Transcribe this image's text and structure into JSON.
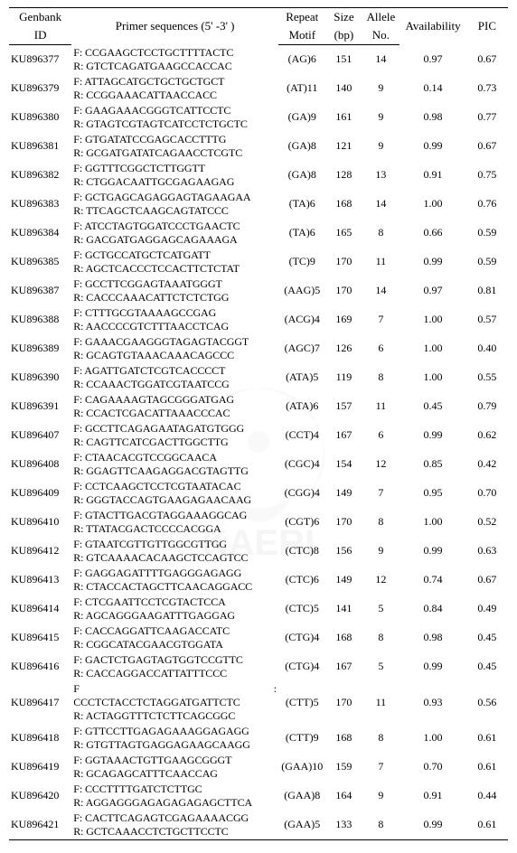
{
  "header": {
    "col_id_top": "Genbank",
    "col_id_bot": "ID",
    "col_seq": "Primer sequences (5' -3' )",
    "col_repeat_top": "Repeat",
    "col_repeat_bot": "Motif",
    "col_size_top": "Size",
    "col_size_bot": "(bp)",
    "col_allele_top": "Allele",
    "col_allele_bot": "No.",
    "col_avail": "Availability",
    "col_pic": "PIC"
  },
  "col_widths": {
    "id": 66,
    "seq": 218,
    "repeat": 50,
    "size": 38,
    "allele": 40,
    "avail": 70,
    "pic": 44
  },
  "rows": [
    {
      "id": "KU896377",
      "f": "CCGAAGCTCCTGCTTTTACTC",
      "r": "GTCTCAGATGAAGCCACCAC",
      "repeat": "(AG)6",
      "size": "151",
      "allele": "14",
      "avail": "0.97",
      "pic": "0.67"
    },
    {
      "id": "KU896379",
      "f": "ATTAGCATGCTGCTGCTGCT",
      "r": "CCGGAAACATTAACCACC",
      "repeat": "(AT)11",
      "size": "140",
      "allele": "9",
      "avail": "0.14",
      "pic": "0.73"
    },
    {
      "id": "KU896380",
      "f": "GAAGAAACGGGTCATTCCTC",
      "r": "GTAGTCGTAGTCATCCTCTGCTC",
      "repeat": "(GA)9",
      "size": "161",
      "allele": "9",
      "avail": "0.98",
      "pic": "0.77"
    },
    {
      "id": "KU896381",
      "f": "GTGATATCCGAGCACCTTTG",
      "r": "GCGATGATATCAGAACCTCGTC",
      "repeat": "(GA)8",
      "size": "121",
      "allele": "9",
      "avail": "0.99",
      "pic": "0.67"
    },
    {
      "id": "KU896382",
      "f": "GGTTTCGGCTCTTGGTT",
      "r": "CTGGACAATTGCGAGAAGAG",
      "repeat": "(GA)8",
      "size": "128",
      "allele": "13",
      "avail": "0.91",
      "pic": "0.75"
    },
    {
      "id": "KU896383",
      "f": "GCTGAGCAGAGGAGTAGAAGAA",
      "r": "TTCAGCTCAAGCAGTATCCC",
      "repeat": "(TA)6",
      "size": "168",
      "allele": "14",
      "avail": "1.00",
      "pic": "0.76"
    },
    {
      "id": "KU896384",
      "f": "ATCCTAGTGGATCCCTGAACTC",
      "r": "GACGATGAGGAGCAGAAAGA",
      "repeat": "(TA)6",
      "size": "165",
      "allele": "8",
      "avail": "0.66",
      "pic": "0.59"
    },
    {
      "id": "KU896385",
      "f": "GCTGCCATGCTCATGATT",
      "r": "AGCTCACCCTCCACTTCTCTAT",
      "repeat": "(TC)9",
      "size": "170",
      "allele": "11",
      "avail": "0.99",
      "pic": "0.59"
    },
    {
      "id": "KU896387",
      "f": "GCCTTCGGAGTAAATGGGT",
      "r": "CACCCAAACATTCTCTCTGG",
      "repeat": "(AAG)5",
      "size": "170",
      "allele": "14",
      "avail": "0.97",
      "pic": "0.81"
    },
    {
      "id": "KU896388",
      "f": "CTTTGCGTAAAAGCCGAG",
      "r": "AACCCCGTCTTTAACCTCAG",
      "repeat": "(ACG)4",
      "size": "169",
      "allele": "7",
      "avail": "1.00",
      "pic": "0.57"
    },
    {
      "id": "KU896389",
      "f": "GAAACGAAGGGTAGAGTACGGT",
      "r": "GCAGTGTAAACAAACAGCCC",
      "repeat": "(AGC)7",
      "size": "126",
      "allele": "6",
      "avail": "1.00",
      "pic": "0.40"
    },
    {
      "id": "KU896390",
      "f": "AGATTGATCTCGTCACCCCT",
      "r": "CCAAACTGGATCGTAATCCG",
      "repeat": "(ATA)5",
      "size": "119",
      "allele": "8",
      "avail": "1.00",
      "pic": "0.55"
    },
    {
      "id": "KU896391",
      "f": "CAGAAAAGTAGCGGGATGAG",
      "r": "CCACTCGACATTAAACCCAC",
      "repeat": "(ATA)6",
      "size": "157",
      "allele": "11",
      "avail": "0.45",
      "pic": "0.79"
    },
    {
      "id": "KU896407",
      "f": "GCCTTCAGAGAATAGATGTGGG",
      "r": "CAGTTCATCGACTTGGCTTG",
      "repeat": "(CCT)4",
      "size": "167",
      "allele": "6",
      "avail": "0.99",
      "pic": "0.62"
    },
    {
      "id": "KU896408",
      "f": "CTAACACGTCCGGCAACA",
      "r": "GGAGTTCAAGAGGACGTAGTTG",
      "repeat": "(CGC)4",
      "size": "154",
      "allele": "12",
      "avail": "0.85",
      "pic": "0.42"
    },
    {
      "id": "KU896409",
      "f": "CCTCAAGCTCCTCGTAATACAC",
      "r": "GGGTACCAGTGAAGAGAACAAG",
      "repeat": "(CGG)4",
      "size": "149",
      "allele": "7",
      "avail": "0.95",
      "pic": "0.70"
    },
    {
      "id": "KU896410",
      "f": "GTACTTGACGTAGGAAAGGCAG",
      "r": "TTATACGACTCCCCACGGA",
      "repeat": "(CGT)6",
      "size": "170",
      "allele": "8",
      "avail": "1.00",
      "pic": "0.52"
    },
    {
      "id": "KU896412",
      "f": "GTAATCGTTGTTGGCGTTGG",
      "r": "GTCAAAACACAAGCTCCAGTCC",
      "repeat": "(CTC)8",
      "size": "156",
      "allele": "9",
      "avail": "0.99",
      "pic": "0.63"
    },
    {
      "id": "KU896413",
      "f": "GAGGAGATTTTGAGGGAGAGG",
      "r": "CTACCACTAGCTTCAACAGGACC",
      "repeat": "(CTC)6",
      "size": "149",
      "allele": "12",
      "avail": "0.74",
      "pic": "0.67"
    },
    {
      "id": "KU896414",
      "f": "CTCGAATTCCTCGTACTCCA",
      "r": "AGCAGGGAAGATTTGAGGAG",
      "repeat": "(CTC)5",
      "size": "141",
      "allele": "5",
      "avail": "0.84",
      "pic": "0.49"
    },
    {
      "id": "KU896415",
      "f": "CACCAGGATTCAAGACCATC",
      "r": "CGGCATACGAACGTGGATA",
      "repeat": "(CTG)4",
      "size": "168",
      "allele": "8",
      "avail": "0.98",
      "pic": "0.45"
    },
    {
      "id": "KU896416",
      "f": "GACTCTGAGTAGTGGTCCGTTC",
      "r": "CACCAGGACCATTATTTCCC",
      "repeat": "(CTG)4",
      "size": "167",
      "allele": "5",
      "avail": "0.99",
      "pic": "0.45"
    },
    {
      "id": "KU896417",
      "variant": "three",
      "pre": "",
      "f": "CCCTCTACCTCTAGGATGATTCTC",
      "r": "ACTAGGTTTCTCTTCAGCGGC",
      "repeat": "(CTT)5",
      "size": "170",
      "allele": "11",
      "avail": "0.93",
      "pic": "0.56"
    },
    {
      "id": "KU896418",
      "f": "GTTCCTTGAGAGAAAGGAGAGG",
      "r": "GTGTTAGTGAGGAGAAGCAAGG",
      "repeat": "(CTT)9",
      "size": "168",
      "allele": "8",
      "avail": "1.00",
      "pic": "0.61"
    },
    {
      "id": "KU896419",
      "f": "GGTAAACTGTTGAAGCGGGT",
      "r": "GCAGAGCATTTCAACCAG",
      "repeat": "(GAA)10",
      "size": "159",
      "allele": "7",
      "avail": "0.70",
      "pic": "0.61"
    },
    {
      "id": "KU896420",
      "f": "CCCTTTTGATCTCTTGC",
      "r": "AGGAGGGAGAGAGAGAGCTTCA",
      "repeat": "(GAA)8",
      "size": "164",
      "allele": "9",
      "avail": "0.91",
      "pic": "0.44"
    },
    {
      "id": "KU896421",
      "f": "CACTTCAGAGTCGAGAAAACGG",
      "r": "GCTCAAACCTCTGCTTCCTC",
      "repeat": "(GAA)5",
      "size": "133",
      "allele": "8",
      "avail": "0.99",
      "pic": "0.61"
    }
  ]
}
